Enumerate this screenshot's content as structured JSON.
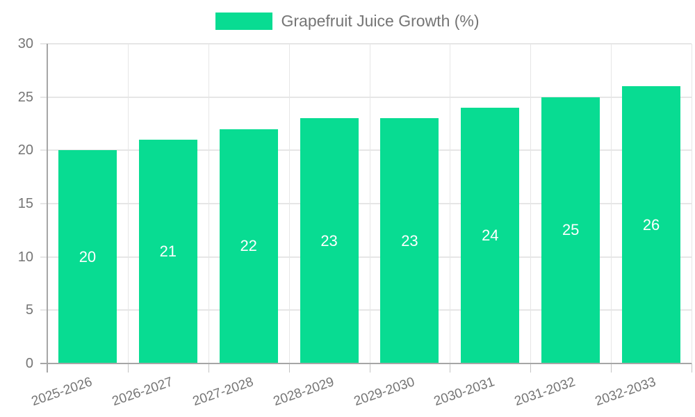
{
  "legend": {
    "label": "Grapefruit Juice Growth (%)"
  },
  "colors": {
    "bar": "#08dc92",
    "grid": "#e6e6e6",
    "axis": "#a6a6a6",
    "tick": "#c4c4c4",
    "text": "#757575",
    "value_label": "#ffffff",
    "background": "#ffffff"
  },
  "chart_data": {
    "type": "bar",
    "title": "Grapefruit Juice Growth (%)",
    "categories": [
      "2025-2026",
      "2026-2027",
      "2027-2028",
      "2028-2029",
      "2029-2030",
      "2030-2031",
      "2031-2032",
      "2032-2033"
    ],
    "series": [
      {
        "name": "Grapefruit Juice Growth (%)",
        "values": [
          20,
          21,
          22,
          23,
          23,
          24,
          25,
          26
        ]
      }
    ],
    "value_labels": [
      20,
      21,
      22,
      23,
      23,
      24,
      25,
      26
    ],
    "value_label_position": "inside-center",
    "xlabel": "",
    "ylabel": "",
    "ylim": [
      0,
      30
    ],
    "ytick_step": 5,
    "ytick_labels": [
      "0",
      "5",
      "10",
      "15",
      "20",
      "25",
      "30"
    ],
    "grid": "on",
    "legend_position": "top-center"
  }
}
